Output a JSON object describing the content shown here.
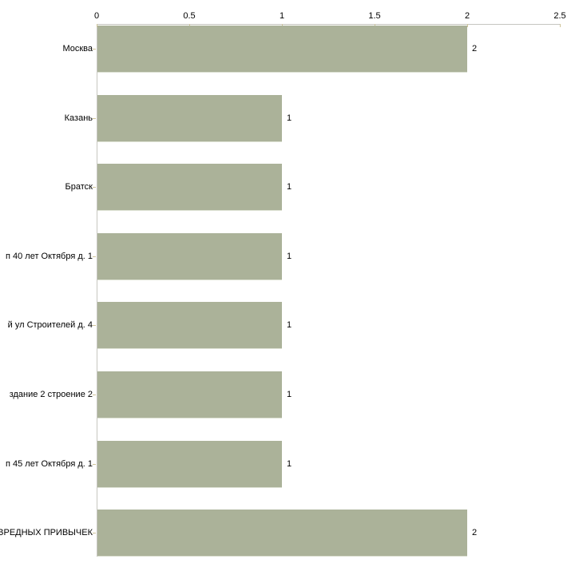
{
  "chart_data": {
    "type": "bar",
    "orientation": "horizontal",
    "title": "",
    "categories": [
      "Москва",
      "Казань",
      "Братск",
      "п 40 лет Октября д. 1",
      "й ул Строителей д. 4",
      "здание 2 строение 2",
      "п 45 лет Октября д. 1",
      "ВРЕДНЫХ ПРИВЫЧЕК"
    ],
    "values": [
      2,
      1,
      1,
      1,
      1,
      1,
      1,
      2
    ],
    "value_labels": [
      "2",
      "1",
      "1",
      "1",
      "1",
      "1",
      "1",
      "2"
    ],
    "xlabel": "",
    "ylabel": "",
    "xlim": [
      0,
      2.5
    ],
    "x_tick_values": [
      0,
      0.5,
      1,
      1.5,
      2,
      2.5
    ],
    "x_tick_labels": [
      "0",
      "0.5",
      "1",
      "1.5",
      "2",
      "2.5"
    ],
    "axis_position": "top",
    "grid": false,
    "legend": "none",
    "colors": {
      "bar": "#abb299",
      "bar_edge": "#dde1d3",
      "axis": "#c6c6c0",
      "tick": "#cfc49a",
      "text": "#000000",
      "background": "#ffffff"
    }
  }
}
